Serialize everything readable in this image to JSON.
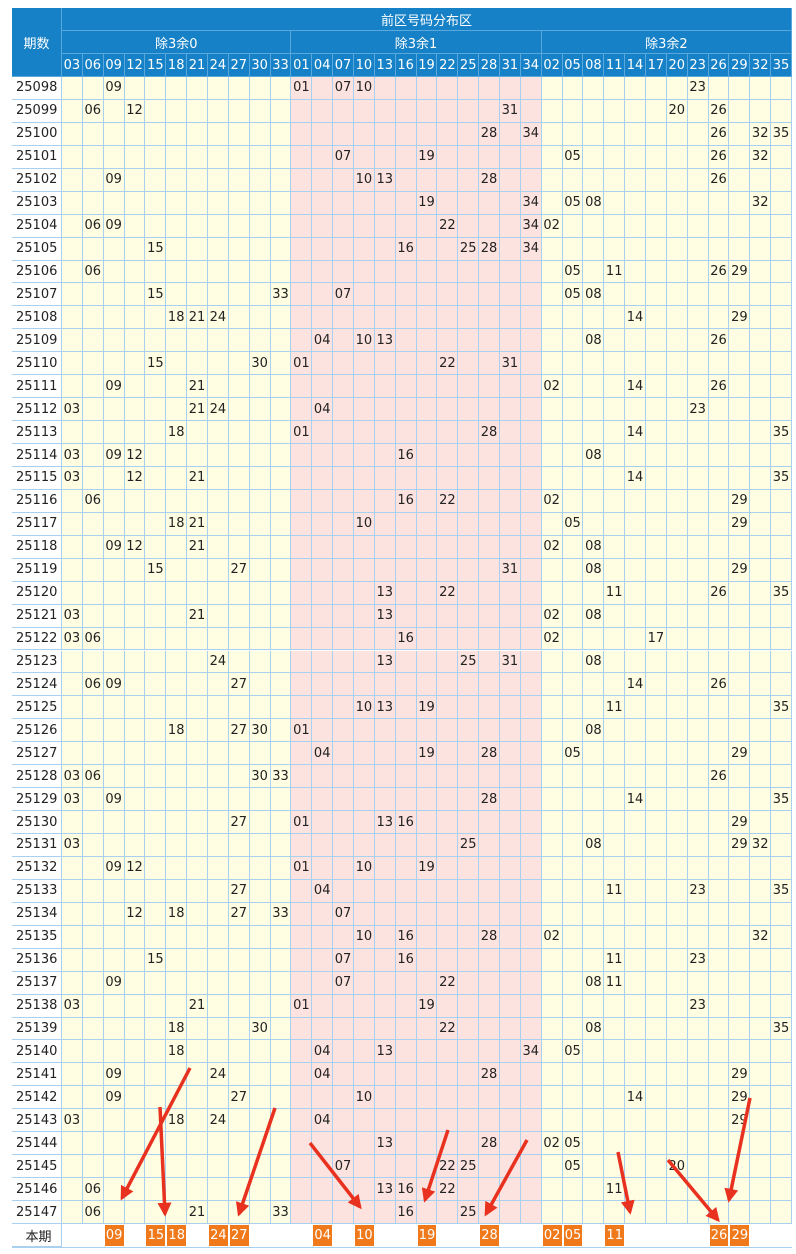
{
  "header": {
    "issue_label": "期数",
    "title": "前区号码分布区",
    "groups": [
      {
        "label": "除3余0",
        "columns": [
          "03",
          "06",
          "09",
          "12",
          "15",
          "18",
          "21",
          "24",
          "27",
          "30",
          "33"
        ]
      },
      {
        "label": "除3余1",
        "columns": [
          "01",
          "04",
          "07",
          "10",
          "13",
          "16",
          "19",
          "22",
          "25",
          "28",
          "31",
          "34"
        ]
      },
      {
        "label": "除3余2",
        "columns": [
          "02",
          "05",
          "08",
          "11",
          "14",
          "17",
          "20",
          "23",
          "26",
          "29",
          "32",
          "35"
        ]
      }
    ]
  },
  "rows": [
    {
      "issue": "25098",
      "numbers": [
        "09",
        "01",
        "07",
        "10",
        "23"
      ]
    },
    {
      "issue": "25099",
      "numbers": [
        "06",
        "12",
        "31",
        "20",
        "26"
      ]
    },
    {
      "issue": "25100",
      "numbers": [
        "28",
        "34",
        "26",
        "32",
        "35"
      ]
    },
    {
      "issue": "25101",
      "numbers": [
        "07",
        "19",
        "05",
        "26",
        "32"
      ]
    },
    {
      "issue": "25102",
      "numbers": [
        "09",
        "10",
        "13",
        "28",
        "26"
      ]
    },
    {
      "issue": "25103",
      "numbers": [
        "19",
        "34",
        "05",
        "08",
        "32"
      ]
    },
    {
      "issue": "25104",
      "numbers": [
        "06",
        "09",
        "22",
        "34",
        "02"
      ]
    },
    {
      "issue": "25105",
      "numbers": [
        "15",
        "16",
        "25",
        "28",
        "34"
      ]
    },
    {
      "issue": "25106",
      "numbers": [
        "06",
        "05",
        "11",
        "26",
        "29"
      ]
    },
    {
      "issue": "25107",
      "numbers": [
        "15",
        "33",
        "07",
        "05",
        "08"
      ]
    },
    {
      "issue": "25108",
      "numbers": [
        "18",
        "21",
        "24",
        "14",
        "29"
      ]
    },
    {
      "issue": "25109",
      "numbers": [
        "04",
        "10",
        "13",
        "08",
        "26"
      ]
    },
    {
      "issue": "25110",
      "numbers": [
        "15",
        "30",
        "01",
        "22",
        "31"
      ]
    },
    {
      "issue": "25111",
      "numbers": [
        "09",
        "21",
        "02",
        "14",
        "26"
      ]
    },
    {
      "issue": "25112",
      "numbers": [
        "03",
        "21",
        "24",
        "04",
        "23"
      ]
    },
    {
      "issue": "25113",
      "numbers": [
        "18",
        "01",
        "28",
        "14",
        "35"
      ]
    },
    {
      "issue": "25114",
      "numbers": [
        "03",
        "09",
        "12",
        "16",
        "08"
      ]
    },
    {
      "issue": "25115",
      "numbers": [
        "03",
        "12",
        "21",
        "14",
        "35"
      ]
    },
    {
      "issue": "25116",
      "numbers": [
        "06",
        "16",
        "22",
        "02",
        "29"
      ]
    },
    {
      "issue": "25117",
      "numbers": [
        "18",
        "21",
        "10",
        "05",
        "29"
      ]
    },
    {
      "issue": "25118",
      "numbers": [
        "09",
        "12",
        "21",
        "02",
        "08"
      ]
    },
    {
      "issue": "25119",
      "numbers": [
        "15",
        "27",
        "31",
        "08",
        "29"
      ]
    },
    {
      "issue": "25120",
      "numbers": [
        "13",
        "22",
        "11",
        "26",
        "35"
      ]
    },
    {
      "issue": "25121",
      "numbers": [
        "03",
        "21",
        "13",
        "02",
        "08"
      ]
    },
    {
      "issue": "25122",
      "numbers": [
        "03",
        "06",
        "16",
        "02",
        "17"
      ]
    },
    {
      "issue": "25123",
      "numbers": [
        "24",
        "13",
        "25",
        "31",
        "08"
      ]
    },
    {
      "issue": "25124",
      "numbers": [
        "06",
        "09",
        "27",
        "14",
        "26"
      ]
    },
    {
      "issue": "25125",
      "numbers": [
        "10",
        "13",
        "19",
        "11",
        "35"
      ]
    },
    {
      "issue": "25126",
      "numbers": [
        "18",
        "27",
        "30",
        "01",
        "08"
      ]
    },
    {
      "issue": "25127",
      "numbers": [
        "04",
        "19",
        "28",
        "05",
        "29"
      ]
    },
    {
      "issue": "25128",
      "numbers": [
        "03",
        "06",
        "30",
        "33",
        "26"
      ]
    },
    {
      "issue": "25129",
      "numbers": [
        "03",
        "09",
        "28",
        "14",
        "35"
      ]
    },
    {
      "issue": "25130",
      "numbers": [
        "27",
        "01",
        "13",
        "16",
        "29"
      ]
    },
    {
      "issue": "25131",
      "numbers": [
        "03",
        "25",
        "08",
        "29",
        "32"
      ]
    },
    {
      "issue": "25132",
      "numbers": [
        "09",
        "12",
        "01",
        "10",
        "19"
      ]
    },
    {
      "issue": "25133",
      "numbers": [
        "27",
        "04",
        "11",
        "23",
        "35"
      ]
    },
    {
      "issue": "25134",
      "numbers": [
        "12",
        "18",
        "27",
        "33",
        "07"
      ]
    },
    {
      "issue": "25135",
      "numbers": [
        "10",
        "16",
        "28",
        "02",
        "32"
      ]
    },
    {
      "issue": "25136",
      "numbers": [
        "15",
        "07",
        "16",
        "11",
        "23"
      ]
    },
    {
      "issue": "25137",
      "numbers": [
        "09",
        "07",
        "22",
        "08",
        "11"
      ]
    },
    {
      "issue": "25138",
      "numbers": [
        "03",
        "21",
        "01",
        "19",
        "23"
      ]
    },
    {
      "issue": "25139",
      "numbers": [
        "18",
        "30",
        "22",
        "08",
        "35"
      ]
    },
    {
      "issue": "25140",
      "numbers": [
        "18",
        "04",
        "13",
        "34",
        "05"
      ]
    },
    {
      "issue": "25141",
      "numbers": [
        "09",
        "24",
        "04",
        "28",
        "29"
      ]
    },
    {
      "issue": "25142",
      "numbers": [
        "09",
        "27",
        "10",
        "14",
        "29"
      ]
    },
    {
      "issue": "25143",
      "numbers": [
        "03",
        "18",
        "24",
        "04",
        "29"
      ]
    },
    {
      "issue": "25144",
      "numbers": [
        "13",
        "28",
        "02",
        "05"
      ]
    },
    {
      "issue": "25145",
      "numbers": [
        "07",
        "22",
        "25",
        "05",
        "20"
      ]
    },
    {
      "issue": "25146",
      "numbers": [
        "06",
        "13",
        "16",
        "22",
        "11"
      ]
    },
    {
      "issue": "25147",
      "numbers": [
        "06",
        "21",
        "33",
        "16",
        "25"
      ]
    }
  ],
  "current": {
    "label": "本期",
    "numbers": [
      "09",
      "15",
      "18",
      "24",
      "27",
      "04",
      "10",
      "19",
      "28",
      "02",
      "05",
      "11",
      "26",
      "29"
    ]
  }
}
